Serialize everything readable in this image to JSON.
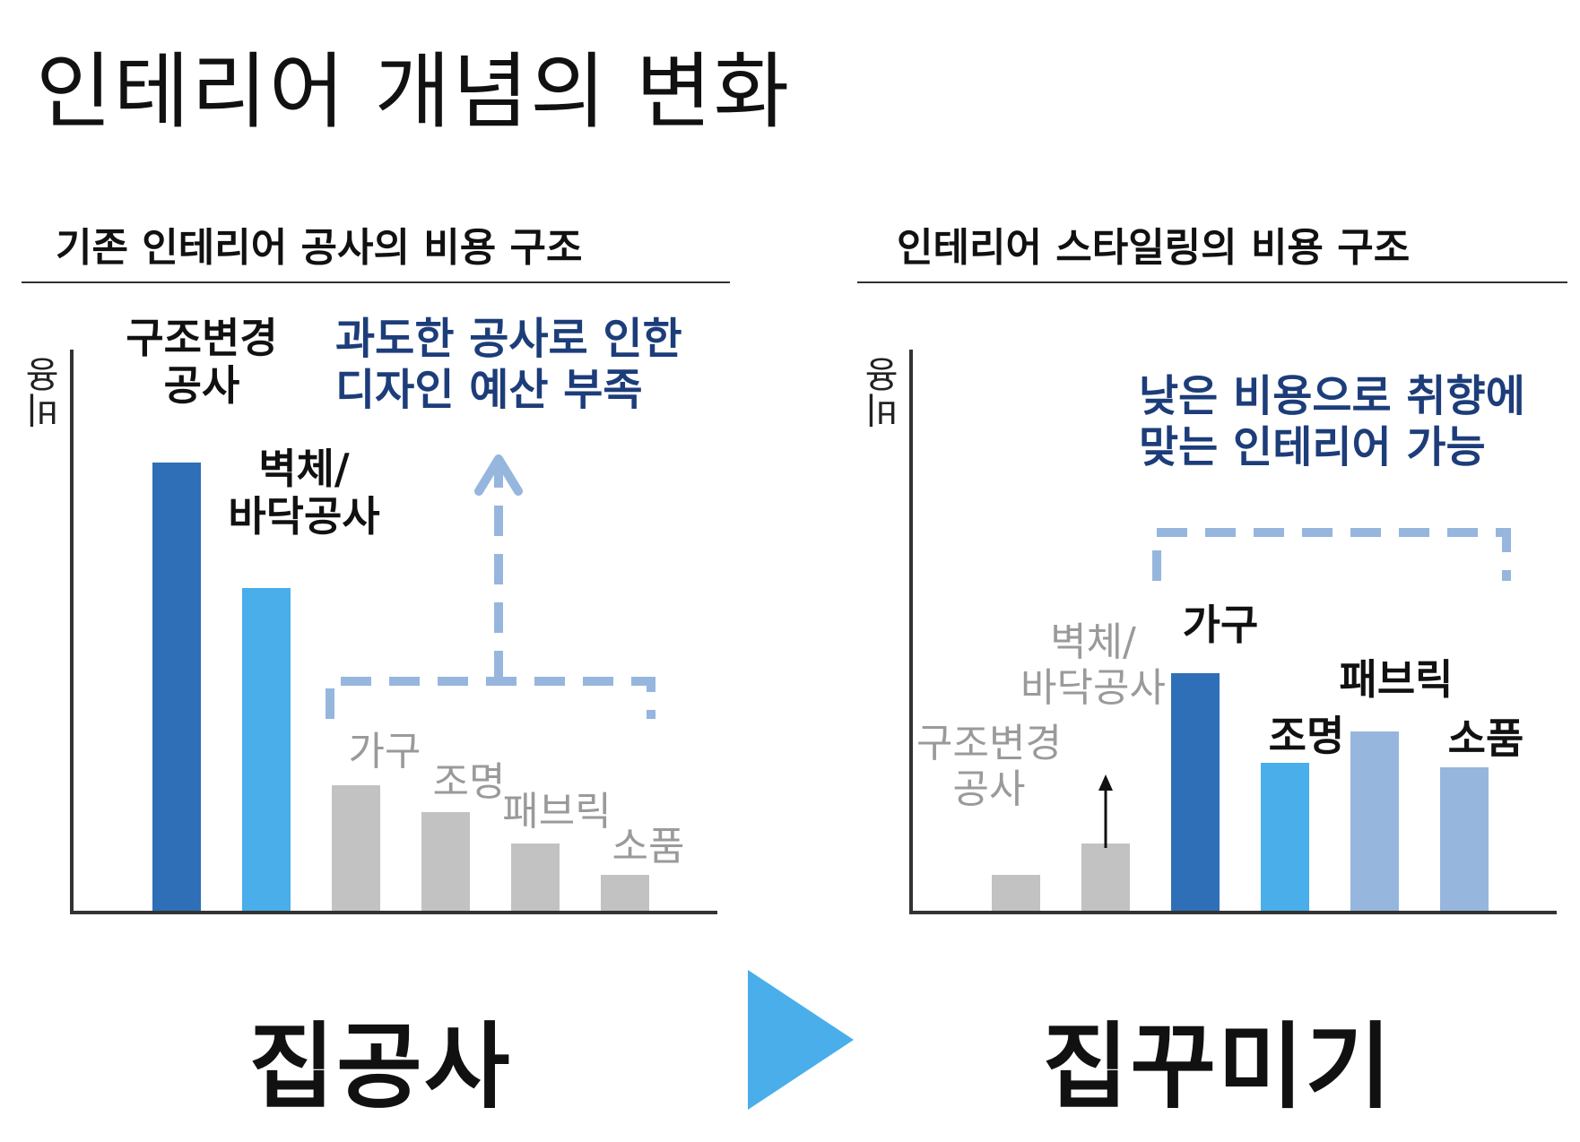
{
  "title": "인테리어 개념의 변화",
  "left_panel": {
    "heading": "기존 인테리어 공사의 비용 구조",
    "note": [
      "과도한 공사로 인한",
      "디자인 예산 부족"
    ],
    "bottom_label": "집공사"
  },
  "right_panel": {
    "heading": "인테리어 스타일링의 비용 구조",
    "note": [
      "낮은 비용으로 취향에",
      "맞는 인테리어 가능"
    ],
    "bottom_label": "집꾸미기"
  },
  "colors": {
    "dark_blue": "#2e6fb7",
    "sky_blue": "#49aeea",
    "light_blue": "#96b6de",
    "gray": "#c2c2c2",
    "note_text": "#1d3d7a",
    "dashed": "#96b6de",
    "arrow": "#49aeea"
  },
  "chart_data": [
    {
      "type": "bar",
      "title": "기존 인테리어 공사의 비용 구조",
      "ylabel": "비용",
      "xlabel": "",
      "ylim": [
        0,
        100
      ],
      "grid": false,
      "categories": [
        "구조변경\n공사",
        "벽체/\n바닥공사",
        "가구",
        "조명",
        "패브릭",
        "소품"
      ],
      "values": [
        100,
        72,
        28,
        22,
        15,
        8
      ],
      "bar_colors": [
        "dark_blue",
        "sky_blue",
        "gray",
        "gray",
        "gray",
        "gray"
      ],
      "label_styles": [
        "bold",
        "bold",
        "muted",
        "muted",
        "muted",
        "muted"
      ],
      "annotation": "과도한 공사로 인한 디자인 예산 부족"
    },
    {
      "type": "bar",
      "title": "인테리어 스타일링의 비용 구조",
      "ylabel": "비용",
      "xlabel": "",
      "ylim": [
        0,
        100
      ],
      "grid": false,
      "categories": [
        "구조변경\n공사",
        "벽체/\n바닥공사",
        "가구",
        "조명",
        "패브릭",
        "소품"
      ],
      "values": [
        8,
        15,
        53,
        33,
        40,
        32
      ],
      "bar_colors": [
        "gray",
        "gray",
        "dark_blue",
        "sky_blue",
        "light_blue",
        "light_blue"
      ],
      "label_styles": [
        "muted",
        "muted",
        "bold",
        "bold",
        "bold",
        "bold"
      ],
      "annotation": "낮은 비용으로 취향에 맞는 인테리어 가능"
    }
  ]
}
